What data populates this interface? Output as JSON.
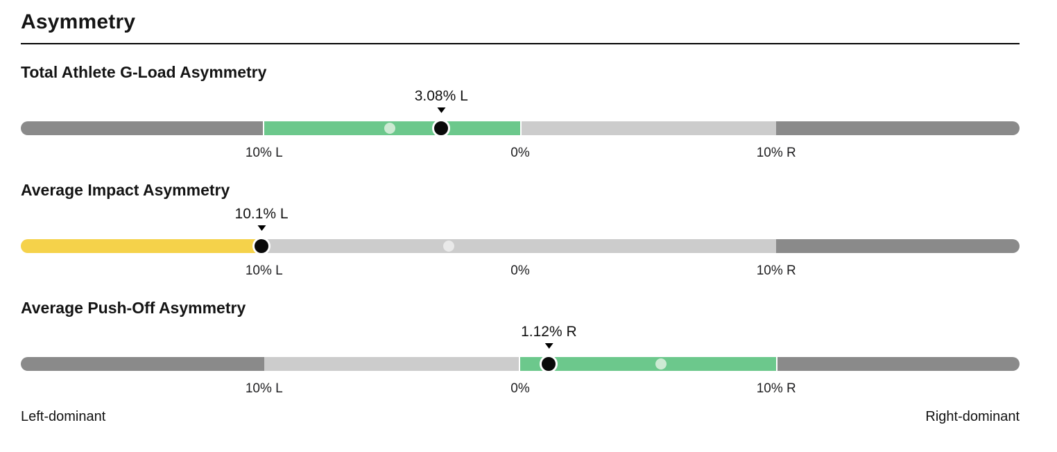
{
  "header": {
    "title": "Asymmetry"
  },
  "footer": {
    "left": "Left-dominant",
    "right": "Right-dominant"
  },
  "colors": {
    "dark_gray": "#8a8a8a",
    "light_gray": "#cccccc",
    "green": "#6cc88c",
    "yellow": "#f5d24a",
    "light_green_dot": "#cdead3",
    "light_gray_dot": "#e9e9e9",
    "marker_black": "#0a0a0a",
    "marker_ring": "#ffffff"
  },
  "chart_data": {
    "type": "gauge",
    "title": "Asymmetry",
    "axis": {
      "unit": "%",
      "min": -19.5,
      "max": 19.5,
      "negative_side": "L",
      "positive_side": "R",
      "ticks": [
        {
          "value": -10,
          "label": "10% L"
        },
        {
          "value": 0,
          "label": "0%"
        },
        {
          "value": 10,
          "label": "10% R"
        }
      ]
    },
    "gauges": [
      {
        "title": "Total Athlete G-Load Asymmetry",
        "value": -3.08,
        "value_label": "3.08% L",
        "reference_value": -5.1,
        "reference_dot_color_key": "light_green_dot",
        "segments": [
          {
            "from": -19.5,
            "to": -10,
            "color_key": "dark_gray",
            "gap": false
          },
          {
            "from": -10,
            "to": 0,
            "color_key": "green",
            "gap": true
          },
          {
            "from": 0,
            "to": 10,
            "color_key": "light_gray",
            "gap": false
          },
          {
            "from": 10,
            "to": 19.5,
            "color_key": "dark_gray",
            "gap": false
          }
        ]
      },
      {
        "title": "Average Impact Asymmetry",
        "value": -10.1,
        "value_label": "10.1% L",
        "reference_value": -2.8,
        "reference_dot_color_key": "light_gray_dot",
        "segments": [
          {
            "from": -19.5,
            "to": -10.1,
            "color_key": "yellow",
            "gap": true
          },
          {
            "from": -10.1,
            "to": 10,
            "color_key": "light_gray",
            "gap": false
          },
          {
            "from": 10,
            "to": 19.5,
            "color_key": "dark_gray",
            "gap": false
          }
        ]
      },
      {
        "title": "Average Push-Off Asymmetry",
        "value": 1.12,
        "value_label": "1.12% R",
        "reference_value": 5.5,
        "reference_dot_color_key": "light_green_dot",
        "segments": [
          {
            "from": -19.5,
            "to": -10,
            "color_key": "dark_gray",
            "gap": false
          },
          {
            "from": -10,
            "to": 0,
            "color_key": "light_gray",
            "gap": false
          },
          {
            "from": 0,
            "to": 10,
            "color_key": "green",
            "gap": true
          },
          {
            "from": 10,
            "to": 19.5,
            "color_key": "dark_gray",
            "gap": false
          }
        ]
      }
    ]
  }
}
